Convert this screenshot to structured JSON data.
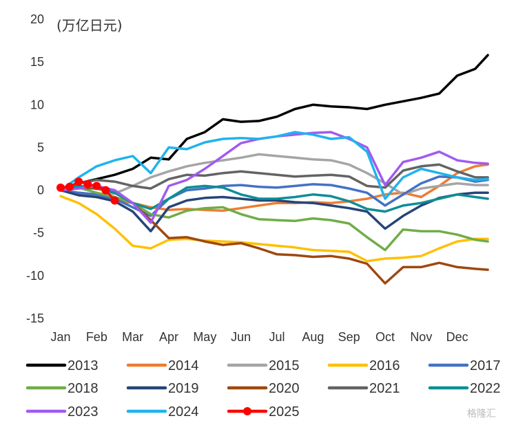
{
  "watermark": "格隆汇",
  "chart_data": {
    "type": "line",
    "unit_label": "(万亿日元)",
    "ylim": [
      -15,
      20
    ],
    "yticks": [
      -15,
      -10,
      -5,
      0,
      5,
      10,
      15,
      20
    ],
    "ytick_labels": [
      "-15",
      "-10",
      "-5",
      "0",
      "5",
      "10",
      "15",
      "20"
    ],
    "xlim": [
      0,
      12
    ],
    "months": [
      "Jan",
      "Feb",
      "Mar",
      "Apr",
      "May",
      "Jun",
      "Jul",
      "Aug",
      "Sep",
      "Oct",
      "Nov",
      "Dec"
    ],
    "legend_placement": "bottom",
    "grid": false,
    "series": [
      {
        "name": "2013",
        "color": "#000000",
        "x": [
          0,
          0.5,
          1,
          1.5,
          2,
          2.5,
          3,
          3.5,
          4,
          4.5,
          5,
          5.5,
          6,
          6.5,
          7,
          7.5,
          8,
          8.5,
          9,
          9.5,
          10,
          10.5,
          11,
          11.5,
          11.85
        ],
        "y": [
          0,
          0.8,
          1.3,
          1.8,
          2.5,
          3.8,
          3.6,
          6.0,
          6.8,
          8.3,
          8.0,
          8.1,
          8.6,
          9.5,
          10.0,
          9.8,
          9.7,
          9.5,
          10.0,
          10.4,
          10.8,
          11.3,
          13.4,
          14.2,
          15.8
        ]
      },
      {
        "name": "2014",
        "color": "#ED7D31",
        "x": [
          0,
          0.5,
          1,
          1.5,
          2,
          2.5,
          3,
          3.5,
          4,
          4.5,
          5,
          5.5,
          6,
          6.5,
          7,
          7.5,
          8,
          8.5,
          9,
          9.5,
          10,
          10.5,
          11,
          11.5,
          11.85
        ],
        "y": [
          0,
          -0.5,
          -0.8,
          -1.2,
          -1.5,
          -2.0,
          -2.3,
          -2.2,
          -2.3,
          -2.4,
          -2.1,
          -1.8,
          -1.5,
          -1.5,
          -1.4,
          -1.5,
          -1.3,
          -1.0,
          -0.5,
          -0.3,
          -0.8,
          0.5,
          2.0,
          2.8,
          3.0
        ]
      },
      {
        "name": "2015",
        "color": "#A5A5A5",
        "x": [
          0,
          0.5,
          1,
          1.5,
          2,
          2.5,
          3,
          3.5,
          4,
          4.5,
          5,
          5.5,
          6,
          6.5,
          7,
          7.5,
          8,
          8.5,
          9,
          9.5,
          10,
          10.5,
          11,
          11.5,
          11.85
        ],
        "y": [
          0,
          -0.3,
          -0.5,
          -0.4,
          0.5,
          1.5,
          2.2,
          2.8,
          3.2,
          3.5,
          3.8,
          4.2,
          4.0,
          3.8,
          3.6,
          3.5,
          3.0,
          2.0,
          0.8,
          -0.5,
          0.2,
          0.5,
          0.8,
          0.6,
          0.6
        ]
      },
      {
        "name": "2016",
        "color": "#FFC000",
        "x": [
          0,
          0.5,
          1,
          1.5,
          2,
          2.5,
          3,
          3.5,
          4,
          4.5,
          5,
          5.5,
          6,
          6.5,
          7,
          7.5,
          8,
          8.5,
          9,
          9.5,
          10,
          10.5,
          11,
          11.5,
          11.85
        ],
        "y": [
          -0.7,
          -1.5,
          -2.8,
          -4.5,
          -6.5,
          -6.8,
          -5.8,
          -5.7,
          -5.9,
          -6.0,
          -6.1,
          -6.3,
          -6.5,
          -6.7,
          -7.0,
          -7.1,
          -7.2,
          -8.3,
          -8.0,
          -7.9,
          -7.7,
          -6.8,
          -6.0,
          -5.7,
          -5.7
        ]
      },
      {
        "name": "2017",
        "color": "#4472C4",
        "x": [
          0,
          0.5,
          1,
          1.5,
          2,
          2.5,
          3,
          3.5,
          4,
          4.5,
          5,
          5.5,
          6,
          6.5,
          7,
          7.5,
          8,
          8.5,
          9,
          9.5,
          10,
          10.5,
          11,
          11.5,
          11.85
        ],
        "y": [
          0,
          -0.3,
          -0.5,
          -1.0,
          -2.0,
          -3.0,
          -1.0,
          0.0,
          0.2,
          0.5,
          0.6,
          0.4,
          0.3,
          0.5,
          0.7,
          0.6,
          0.2,
          -0.3,
          -1.8,
          -0.5,
          0.8,
          1.6,
          1.5,
          1.0,
          1.2
        ]
      },
      {
        "name": "2018",
        "color": "#70AD47",
        "x": [
          0,
          0.5,
          1,
          1.5,
          2,
          2.5,
          3,
          3.5,
          4,
          4.5,
          5,
          5.5,
          6,
          6.5,
          7,
          7.5,
          8,
          8.5,
          9,
          9.5,
          10,
          10.5,
          11,
          11.5,
          11.85
        ],
        "y": [
          0,
          0.3,
          -0.3,
          -0.8,
          -1.5,
          -2.8,
          -3.2,
          -2.4,
          -2.1,
          -2.0,
          -2.8,
          -3.4,
          -3.5,
          -3.6,
          -3.3,
          -3.5,
          -3.9,
          -5.5,
          -7.0,
          -4.6,
          -4.8,
          -4.8,
          -5.2,
          -5.8,
          -6.0
        ]
      },
      {
        "name": "2019",
        "color": "#264478",
        "x": [
          0,
          0.5,
          1,
          1.5,
          2,
          2.5,
          3,
          3.5,
          4,
          4.5,
          5,
          5.5,
          6,
          6.5,
          7,
          7.5,
          8,
          8.5,
          9,
          9.5,
          10,
          10.5,
          11,
          11.5,
          11.85
        ],
        "y": [
          0,
          -0.6,
          -0.8,
          -1.3,
          -2.5,
          -4.8,
          -2.0,
          -1.2,
          -0.9,
          -0.8,
          -1.0,
          -1.2,
          -1.2,
          -1.4,
          -1.5,
          -1.8,
          -2.1,
          -2.5,
          -4.5,
          -3.0,
          -1.8,
          -0.9,
          -0.5,
          -0.3,
          -0.3
        ]
      },
      {
        "name": "2020",
        "color": "#9E480E",
        "x": [
          0,
          0.5,
          1,
          1.5,
          2,
          2.5,
          3,
          3.5,
          4,
          4.5,
          5,
          5.5,
          6,
          6.5,
          7,
          7.5,
          8,
          8.5,
          9,
          9.5,
          10,
          10.5,
          11,
          11.5,
          11.85
        ],
        "y": [
          0,
          0.3,
          0.2,
          -0.3,
          -1.5,
          -3.5,
          -5.6,
          -5.5,
          -6.0,
          -6.4,
          -6.2,
          -6.8,
          -7.5,
          -7.6,
          -7.8,
          -7.7,
          -8.0,
          -8.6,
          -10.9,
          -9.0,
          -9.0,
          -8.5,
          -9.0,
          -9.2,
          -9.3
        ]
      },
      {
        "name": "2021",
        "color": "#636363",
        "x": [
          0,
          0.5,
          1,
          1.5,
          2,
          2.5,
          3,
          3.5,
          4,
          4.5,
          5,
          5.5,
          6,
          6.5,
          7,
          7.5,
          8,
          8.5,
          9,
          9.5,
          10,
          10.5,
          11,
          11.5,
          11.85
        ],
        "y": [
          0,
          0.8,
          1.2,
          1.0,
          0.5,
          0.2,
          1.3,
          1.8,
          1.7,
          2.0,
          2.2,
          2.0,
          1.8,
          1.6,
          1.7,
          1.8,
          1.6,
          0.5,
          0.3,
          2.3,
          2.8,
          3.0,
          2.2,
          1.5,
          1.5
        ]
      },
      {
        "name": "2022",
        "color": "#0D8E96",
        "x": [
          0,
          0.5,
          1,
          1.5,
          2,
          2.5,
          3,
          3.5,
          4,
          4.5,
          5,
          5.5,
          6,
          6.5,
          7,
          7.5,
          8,
          8.5,
          9,
          9.5,
          10,
          10.5,
          11,
          11.5,
          11.85
        ],
        "y": [
          0,
          0.5,
          0.3,
          -0.3,
          -1.5,
          -2.2,
          -1.0,
          0.3,
          0.5,
          0.3,
          -0.5,
          -1.0,
          -1.0,
          -0.8,
          -0.5,
          -0.7,
          -1.3,
          -2.2,
          -2.5,
          -1.8,
          -1.5,
          -1.0,
          -0.5,
          -0.8,
          -1.0
        ]
      },
      {
        "name": "2023",
        "color": "#A05BF0",
        "x": [
          0,
          0.5,
          1,
          1.5,
          2,
          2.5,
          3,
          3.5,
          4,
          4.5,
          5,
          5.5,
          6,
          6.5,
          7,
          7.5,
          8,
          8.5,
          9,
          9.5,
          10,
          10.5,
          11,
          11.5,
          11.85
        ],
        "y": [
          0,
          0.2,
          0.5,
          0.0,
          -1.5,
          -3.8,
          0.5,
          1.2,
          2.5,
          4.0,
          5.5,
          6.0,
          6.3,
          6.5,
          6.7,
          6.8,
          6.0,
          5.0,
          0.6,
          3.3,
          3.8,
          4.5,
          3.5,
          3.2,
          3.1
        ]
      },
      {
        "name": "2024",
        "color": "#1FB3EE",
        "x": [
          0,
          0.5,
          1,
          1.5,
          2,
          2.5,
          3,
          3.5,
          4,
          4.5,
          5,
          5.5,
          6,
          6.5,
          7,
          7.5,
          8,
          8.5,
          9,
          9.5,
          10,
          10.5,
          11,
          11.5,
          11.85
        ],
        "y": [
          0,
          1.5,
          2.8,
          3.5,
          4.0,
          2.0,
          5.0,
          4.8,
          5.6,
          6.0,
          6.1,
          6.0,
          6.3,
          6.8,
          6.5,
          6.0,
          6.2,
          4.5,
          -1.0,
          1.5,
          2.5,
          2.0,
          1.5,
          1.2,
          1.3
        ]
      },
      {
        "name": "2025",
        "color": "#FF0000",
        "markers": true,
        "x": [
          0,
          0.25,
          0.5,
          0.75,
          1.0,
          1.25,
          1.5
        ],
        "y": [
          0.3,
          0.4,
          1.0,
          0.7,
          0.5,
          0.0,
          -1.2
        ]
      }
    ]
  }
}
